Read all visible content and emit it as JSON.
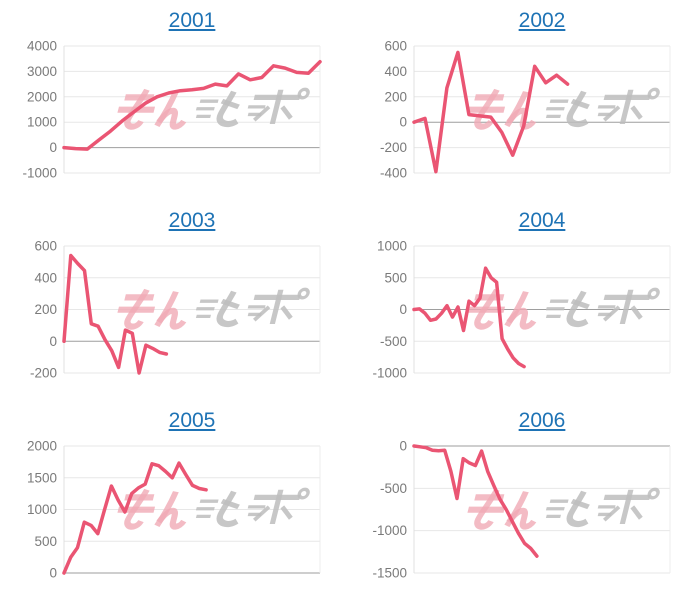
{
  "page": {
    "background": "#ffffff"
  },
  "colors": {
    "line": "#ea5573",
    "grid": "#e7e7e7",
    "zero_line": "#9e9e9e",
    "axis_line": "#e0e0e0",
    "right_edge": "#ececec",
    "tick_text": "#7a7a7a",
    "title_link": "#1e73b5"
  },
  "watermark": {
    "text_red": "みん",
    "text_gray": "とポ",
    "color_red": "#f0aab5",
    "color_gray": "#bdbdbd"
  },
  "chart_data": [
    {
      "type": "line",
      "title": "2001",
      "ylabel": "",
      "xlabel": "",
      "ymin": -1000,
      "ymax": 4000,
      "yticks": [
        4000,
        3000,
        2000,
        1000,
        0,
        -1000
      ],
      "x_fraction": 1.0,
      "grid": true,
      "values": [
        0,
        -40,
        -60,
        300,
        650,
        1050,
        1400,
        1750,
        2000,
        2150,
        2240,
        2280,
        2330,
        2500,
        2430,
        2900,
        2670,
        2760,
        3220,
        3130,
        2960,
        2930,
        3380
      ]
    },
    {
      "type": "line",
      "title": "2002",
      "ylabel": "",
      "xlabel": "",
      "ymin": -400,
      "ymax": 600,
      "yticks": [
        600,
        400,
        200,
        0,
        -200,
        -400
      ],
      "x_fraction": 0.6,
      "grid": true,
      "values": [
        0,
        30,
        -390,
        270,
        550,
        60,
        50,
        40,
        -80,
        -260,
        -30,
        440,
        310,
        370,
        300
      ]
    },
    {
      "type": "line",
      "title": "2003",
      "ylabel": "",
      "xlabel": "",
      "ymin": -200,
      "ymax": 600,
      "yticks": [
        600,
        400,
        200,
        0,
        -200
      ],
      "x_fraction": 0.4,
      "grid": true,
      "values": [
        0,
        540,
        490,
        445,
        110,
        95,
        10,
        -60,
        -165,
        70,
        50,
        -200,
        -25,
        -45,
        -70,
        -80
      ]
    },
    {
      "type": "line",
      "title": "2004",
      "ylabel": "",
      "xlabel": "",
      "ymin": -1000,
      "ymax": 1000,
      "yticks": [
        1000,
        500,
        0,
        -500,
        -1000
      ],
      "x_fraction": 0.43,
      "grid": true,
      "values": [
        0,
        10,
        -60,
        -170,
        -150,
        -60,
        60,
        -120,
        40,
        -330,
        130,
        60,
        180,
        650,
        500,
        430,
        -460,
        -620,
        -760,
        -850,
        -900
      ]
    },
    {
      "type": "line",
      "title": "2005",
      "ylabel": "",
      "xlabel": "",
      "ymin": 0,
      "ymax": 2000,
      "yticks": [
        2000,
        1500,
        1000,
        500,
        0
      ],
      "x_fraction": 0.555,
      "grid": true,
      "values": [
        0,
        250,
        400,
        800,
        750,
        620,
        1000,
        1370,
        1150,
        960,
        1250,
        1340,
        1400,
        1720,
        1690,
        1600,
        1500,
        1730,
        1550,
        1380,
        1330,
        1310
      ]
    },
    {
      "type": "line",
      "title": "2006",
      "ylabel": "",
      "xlabel": "",
      "ymin": -1500,
      "ymax": 0,
      "yticks": [
        0,
        -500,
        -1000,
        -1500
      ],
      "x_fraction": 0.48,
      "grid": true,
      "values": [
        0,
        -10,
        -20,
        -50,
        -55,
        -50,
        -300,
        -620,
        -150,
        -200,
        -230,
        -60,
        -300,
        -470,
        -630,
        -750,
        -890,
        -1030,
        -1150,
        -1210,
        -1300
      ]
    }
  ]
}
